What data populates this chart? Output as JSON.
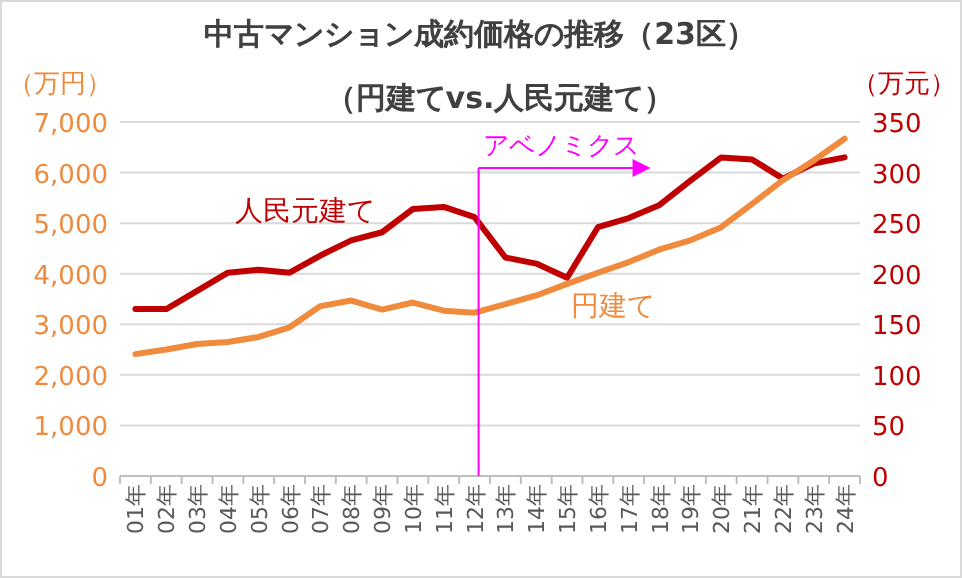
{
  "chart_data": {
    "type": "line",
    "title": "中古マンション成約価格の推移（23区）",
    "subtitle": "（円建てvs.人民元建て）",
    "ylabel": "（万円）",
    "y2label": "（万元）",
    "categories": [
      "01年",
      "02年",
      "03年",
      "04年",
      "05年",
      "06年",
      "07年",
      "08年",
      "09年",
      "10年",
      "11年",
      "12年",
      "13年",
      "14年",
      "15年",
      "16年",
      "17年",
      "18年",
      "19年",
      "20年",
      "21年",
      "22年",
      "23年",
      "24年"
    ],
    "series": [
      {
        "name": "人民元建て",
        "color": "#c00000",
        "axis": "y2",
        "values": [
          165,
          165,
          183,
          201,
          204,
          201,
          218,
          233,
          241,
          264,
          266,
          256,
          216,
          210,
          196,
          246,
          255,
          268,
          292,
          315,
          313,
          294,
          309,
          315
        ]
      },
      {
        "name": "円建て",
        "color": "#f08a3c",
        "values": [
          2410,
          2500,
          2610,
          2650,
          2750,
          2940,
          3360,
          3470,
          3290,
          3430,
          3270,
          3230,
          3400,
          3570,
          3800,
          4020,
          4230,
          4480,
          4660,
          4920,
          5380,
          5850,
          6240,
          6670
        ]
      }
    ],
    "ylim": [
      0,
      7000
    ],
    "yticks": [
      0,
      {
        "value": 1000,
        "label": "1,000"
      },
      {
        "value": 2000,
        "label": "2,000"
      },
      {
        "value": 3000,
        "label": "3,000"
      },
      {
        "value": 4000,
        "label": "4,000"
      },
      {
        "value": 5000,
        "label": "5,000"
      },
      {
        "value": 6000,
        "label": "6,000"
      },
      {
        "value": 7000,
        "label": "7,000"
      }
    ],
    "y2lim": [
      0,
      350
    ],
    "y2ticks": [
      0,
      50,
      100,
      150,
      200,
      250,
      300,
      350
    ],
    "ref_lines": [
      {
        "axis": "x",
        "value": "12年",
        "label": "アベノミクス",
        "color": "#ff00ff"
      }
    ],
    "grid": "y",
    "marker": "none",
    "line_style": "solid"
  }
}
